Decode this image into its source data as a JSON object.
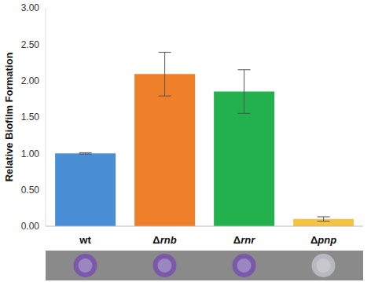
{
  "chart_data": {
    "type": "bar",
    "y_label": "Relative Biofilm Formation",
    "categories": [
      "wt",
      "Δrnb",
      "Δrnr",
      "Δpnp"
    ],
    "values": [
      1.0,
      2.09,
      1.85,
      0.1
    ],
    "errors": [
      0.01,
      0.3,
      0.3,
      0.03
    ],
    "colors": [
      "#4a8fd6",
      "#f07f2a",
      "#22b14c",
      "#f5c342"
    ],
    "ylim": [
      0,
      3
    ],
    "yticks": [
      {
        "value": 0,
        "label": "0.00"
      },
      {
        "value": 0.5,
        "label": "0.50"
      },
      {
        "value": 1,
        "label": "1.00"
      },
      {
        "value": 1.5,
        "label": "1.50"
      },
      {
        "value": 2,
        "label": "2.00"
      },
      {
        "value": 2.5,
        "label": "2.50"
      },
      {
        "value": 3,
        "label": "3.00"
      }
    ],
    "grid": false
  }
}
